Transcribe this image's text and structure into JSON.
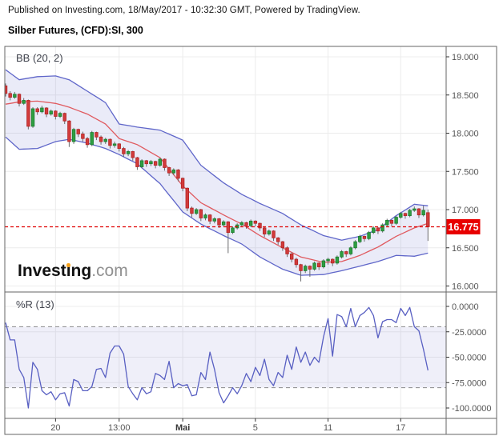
{
  "header": {
    "published": "Published on Investing.com, 18/May/2017 - 10:32:30 GMT, Powered by TradingView.",
    "title": "Silber Futures, (CFD):SI, 300"
  },
  "logo": {
    "part1": "Invest",
    "idot": "i",
    "part2": "ng",
    "tld": ".com"
  },
  "panes": {
    "main_label": "BB (20, 2)",
    "indicator_label": "%R (13)"
  },
  "price_axis": {
    "labels": [
      "19.000",
      "18.500",
      "18.000",
      "17.500",
      "17.000",
      "16.500",
      "16.000"
    ],
    "values": [
      19.0,
      18.5,
      18.0,
      17.5,
      17.0,
      16.5,
      16.0
    ],
    "last_price_label": "16.775"
  },
  "indicator_axis": {
    "labels": [
      "0.0000",
      "-25.0000",
      "-50.0000",
      "-75.0000",
      "-100.0000"
    ],
    "values": [
      0,
      -25,
      -50,
      -75,
      -100
    ]
  },
  "time_axis": {
    "labels": [
      "20",
      "13:00",
      "Mai",
      "5",
      "11",
      "17"
    ],
    "candle_indices": [
      11,
      25,
      39,
      55,
      71,
      87
    ],
    "bold_label": "Mai"
  },
  "colors": {
    "up": "#2e9e41",
    "up_border": "#1d7c30",
    "down": "#d23b3b",
    "down_border": "#b22525",
    "wick": "#6a6a6d",
    "band_line": "#5f66c9",
    "band_fill": "rgba(95,102,201,0.13)",
    "band_mid": "#e05a5f",
    "percent_r": "#585fc2",
    "threshold_fill": "rgba(95,102,201,0.10)",
    "threshold_dash": "#8a8a8a",
    "last_price_bg": "#e80000",
    "last_price_line": "#e00000",
    "grid": "#ececec",
    "frame": "#666666",
    "axis_text": "#555555",
    "tick": "#333333"
  },
  "chart_data": [
    {
      "type": "candlestick",
      "title": "Silber Futures (CFD):SI, 300-minute bars with Bollinger Bands (20,2)",
      "ylim": [
        15.93,
        19.14
      ],
      "last_price": 16.775,
      "ohlc": [
        [
          18.62,
          18.65,
          18.48,
          18.52
        ],
        [
          18.52,
          18.55,
          18.43,
          18.47
        ],
        [
          18.47,
          18.54,
          18.45,
          18.51
        ],
        [
          18.51,
          18.52,
          18.35,
          18.39
        ],
        [
          18.39,
          18.46,
          18.37,
          18.43
        ],
        [
          18.43,
          18.44,
          18.05,
          18.09
        ],
        [
          18.09,
          18.34,
          18.07,
          18.32
        ],
        [
          18.32,
          18.34,
          18.24,
          18.28
        ],
        [
          18.28,
          18.36,
          18.26,
          18.33
        ],
        [
          18.33,
          18.34,
          18.21,
          18.25
        ],
        [
          18.25,
          18.31,
          18.23,
          18.29
        ],
        [
          18.29,
          18.3,
          18.18,
          18.22
        ],
        [
          18.22,
          18.28,
          18.2,
          18.26
        ],
        [
          18.26,
          18.27,
          18.12,
          18.16
        ],
        [
          18.16,
          18.17,
          17.82,
          17.89
        ],
        [
          17.89,
          18.07,
          17.86,
          18.05
        ],
        [
          18.05,
          18.06,
          17.95,
          17.99
        ],
        [
          17.99,
          18.02,
          17.89,
          17.93
        ],
        [
          17.93,
          17.95,
          17.81,
          17.85
        ],
        [
          17.85,
          18.03,
          17.83,
          18.01
        ],
        [
          18.01,
          18.02,
          17.91,
          17.95
        ],
        [
          17.95,
          17.97,
          17.85,
          17.89
        ],
        [
          17.89,
          17.94,
          17.86,
          17.92
        ],
        [
          17.92,
          17.93,
          17.8,
          17.84
        ],
        [
          17.84,
          17.89,
          17.81,
          17.86
        ],
        [
          17.86,
          17.87,
          17.76,
          17.8
        ],
        [
          17.8,
          17.82,
          17.69,
          17.73
        ],
        [
          17.73,
          17.78,
          17.7,
          17.76
        ],
        [
          17.76,
          17.77,
          17.64,
          17.68
        ],
        [
          17.68,
          17.69,
          17.52,
          17.56
        ],
        [
          17.56,
          17.66,
          17.54,
          17.64
        ],
        [
          17.64,
          17.65,
          17.56,
          17.6
        ],
        [
          17.6,
          17.65,
          17.57,
          17.63
        ],
        [
          17.63,
          17.64,
          17.54,
          17.58
        ],
        [
          17.58,
          17.68,
          17.56,
          17.66
        ],
        [
          17.66,
          17.67,
          17.51,
          17.55
        ],
        [
          17.55,
          17.56,
          17.44,
          17.48
        ],
        [
          17.48,
          17.54,
          17.45,
          17.52
        ],
        [
          17.52,
          17.53,
          17.37,
          17.41
        ],
        [
          17.41,
          17.42,
          17.24,
          17.28
        ],
        [
          17.28,
          17.29,
          16.98,
          17.02
        ],
        [
          17.02,
          17.04,
          16.9,
          16.95
        ],
        [
          16.95,
          17.02,
          16.93,
          17.0
        ],
        [
          17.0,
          17.01,
          16.85,
          16.89
        ],
        [
          16.89,
          16.95,
          16.86,
          16.93
        ],
        [
          16.93,
          16.94,
          16.81,
          16.85
        ],
        [
          16.85,
          16.9,
          16.82,
          16.88
        ],
        [
          16.88,
          16.89,
          16.76,
          16.8
        ],
        [
          16.8,
          16.86,
          16.78,
          16.84
        ],
        [
          16.84,
          16.85,
          16.43,
          16.7
        ],
        [
          16.7,
          16.78,
          16.68,
          16.76
        ],
        [
          16.76,
          16.82,
          16.74,
          16.8
        ],
        [
          16.8,
          16.85,
          16.78,
          16.83
        ],
        [
          16.83,
          16.84,
          16.75,
          16.79
        ],
        [
          16.79,
          16.87,
          16.77,
          16.85
        ],
        [
          16.85,
          16.86,
          16.78,
          16.82
        ],
        [
          16.82,
          16.83,
          16.72,
          16.76
        ],
        [
          16.76,
          16.77,
          16.64,
          16.68
        ],
        [
          16.68,
          16.74,
          16.66,
          16.72
        ],
        [
          16.72,
          16.73,
          16.59,
          16.63
        ],
        [
          16.63,
          16.64,
          16.54,
          16.58
        ],
        [
          16.58,
          16.59,
          16.46,
          16.5
        ],
        [
          16.5,
          16.52,
          16.38,
          16.42
        ],
        [
          16.42,
          16.44,
          16.31,
          16.35
        ],
        [
          16.35,
          16.37,
          16.24,
          16.28
        ],
        [
          16.28,
          16.29,
          16.06,
          16.2
        ],
        [
          16.2,
          16.28,
          16.17,
          16.26
        ],
        [
          16.26,
          16.27,
          16.12,
          16.22
        ],
        [
          16.22,
          16.32,
          16.2,
          16.3
        ],
        [
          16.3,
          16.31,
          16.21,
          16.25
        ],
        [
          16.25,
          16.35,
          16.23,
          16.33
        ],
        [
          16.33,
          16.37,
          16.28,
          16.35
        ],
        [
          16.35,
          16.36,
          16.26,
          16.3
        ],
        [
          16.3,
          16.4,
          16.28,
          16.38
        ],
        [
          16.38,
          16.47,
          16.36,
          16.45
        ],
        [
          16.45,
          16.46,
          16.38,
          16.42
        ],
        [
          16.42,
          16.52,
          16.4,
          16.5
        ],
        [
          16.5,
          16.6,
          16.48,
          16.58
        ],
        [
          16.58,
          16.67,
          16.56,
          16.65
        ],
        [
          16.65,
          16.66,
          16.58,
          16.62
        ],
        [
          16.62,
          16.72,
          16.6,
          16.7
        ],
        [
          16.7,
          16.78,
          16.68,
          16.76
        ],
        [
          16.76,
          16.77,
          16.68,
          16.72
        ],
        [
          16.72,
          16.82,
          16.7,
          16.8
        ],
        [
          16.8,
          16.88,
          16.78,
          16.86
        ],
        [
          16.86,
          16.87,
          16.78,
          16.82
        ],
        [
          16.82,
          16.92,
          16.8,
          16.9
        ],
        [
          16.9,
          16.97,
          16.88,
          16.95
        ],
        [
          16.95,
          16.96,
          16.88,
          16.92
        ],
        [
          16.92,
          17.01,
          16.9,
          16.99
        ],
        [
          16.99,
          17.04,
          16.97,
          17.01
        ],
        [
          17.01,
          17.02,
          16.89,
          16.93
        ],
        [
          16.93,
          17.05,
          16.91,
          16.99
        ],
        [
          16.96,
          17.0,
          16.59,
          16.775
        ]
      ],
      "bands_anchors": [
        [
          0,
          18.83,
          18.38,
          17.95
        ],
        [
          3,
          18.7,
          18.41,
          17.79
        ],
        [
          7,
          18.74,
          18.42,
          17.8
        ],
        [
          11,
          18.75,
          18.39,
          17.89
        ],
        [
          14,
          18.7,
          18.34,
          17.92
        ],
        [
          18,
          18.55,
          18.25,
          17.87
        ],
        [
          22,
          18.4,
          18.12,
          17.8
        ],
        [
          25,
          18.12,
          17.93,
          17.72
        ],
        [
          29,
          18.08,
          17.85,
          17.6
        ],
        [
          34,
          18.04,
          17.68,
          17.34
        ],
        [
          39,
          17.91,
          17.31,
          16.97
        ],
        [
          43,
          17.58,
          17.09,
          16.81
        ],
        [
          48,
          17.35,
          16.93,
          16.66
        ],
        [
          52,
          17.2,
          16.81,
          16.55
        ],
        [
          56,
          17.08,
          16.66,
          16.38
        ],
        [
          61,
          16.95,
          16.5,
          16.22
        ],
        [
          65,
          16.8,
          16.38,
          16.14
        ],
        [
          70,
          16.66,
          16.31,
          16.15
        ],
        [
          74,
          16.6,
          16.32,
          16.2
        ],
        [
          78,
          16.65,
          16.4,
          16.26
        ],
        [
          82,
          16.74,
          16.51,
          16.32
        ],
        [
          86,
          16.92,
          16.65,
          16.4
        ],
        [
          90,
          17.07,
          16.76,
          16.39
        ],
        [
          93,
          17.05,
          16.82,
          16.43
        ]
      ]
    },
    {
      "type": "line",
      "title": "Williams %R (13)",
      "ylim": [
        -105,
        5
      ],
      "thresholds": [
        -20,
        -80
      ],
      "values": [
        -16,
        -33,
        -33,
        -62,
        -70,
        -100,
        -55,
        -62,
        -83,
        -87,
        -84,
        -92,
        -86,
        -85,
        -98,
        -72,
        -74,
        -83,
        -83,
        -79,
        -62,
        -61,
        -70,
        -46,
        -39,
        -39,
        -47,
        -79,
        -86,
        -92,
        -80,
        -86,
        -84,
        -66,
        -68,
        -72,
        -54,
        -80,
        -76,
        -78,
        -77,
        -88,
        -87,
        -65,
        -72,
        -45,
        -62,
        -85,
        -95,
        -88,
        -80,
        -86,
        -78,
        -66,
        -74,
        -60,
        -68,
        -52,
        -72,
        -78,
        -65,
        -70,
        -48,
        -62,
        -40,
        -55,
        -45,
        -58,
        -50,
        -55,
        -30,
        -12,
        -49,
        -8,
        -10,
        -20,
        -2,
        -20,
        -9,
        -6,
        -1,
        -9,
        -31,
        -15,
        -13,
        -13,
        -16,
        -2,
        -9,
        -1,
        -20,
        -24,
        -42,
        -63
      ]
    }
  ]
}
